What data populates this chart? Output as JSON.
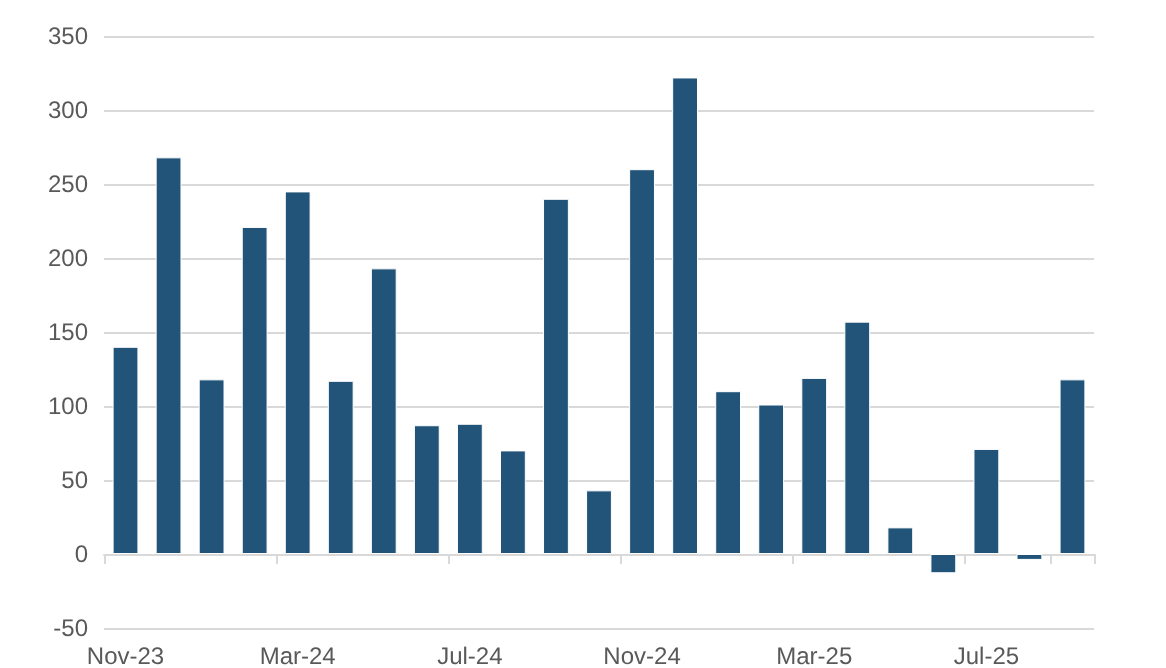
{
  "chart_data": {
    "type": "bar",
    "categories": [
      "Nov-23",
      null,
      null,
      null,
      "Mar-24",
      null,
      null,
      null,
      "Jul-24",
      null,
      null,
      null,
      "Nov-24",
      null,
      null,
      null,
      "Mar-25",
      null,
      null,
      null,
      "Jul-25",
      null,
      null
    ],
    "values": [
      140,
      268,
      118,
      221,
      245,
      117,
      193,
      87,
      88,
      70,
      240,
      43,
      260,
      322,
      110,
      101,
      119,
      157,
      18,
      -13,
      71,
      -4,
      118
    ],
    "color": "#215478",
    "ylim": [
      -50,
      350
    ],
    "yticks": [
      -50,
      0,
      50,
      100,
      150,
      200,
      250,
      300,
      350
    ],
    "grid": "y"
  }
}
